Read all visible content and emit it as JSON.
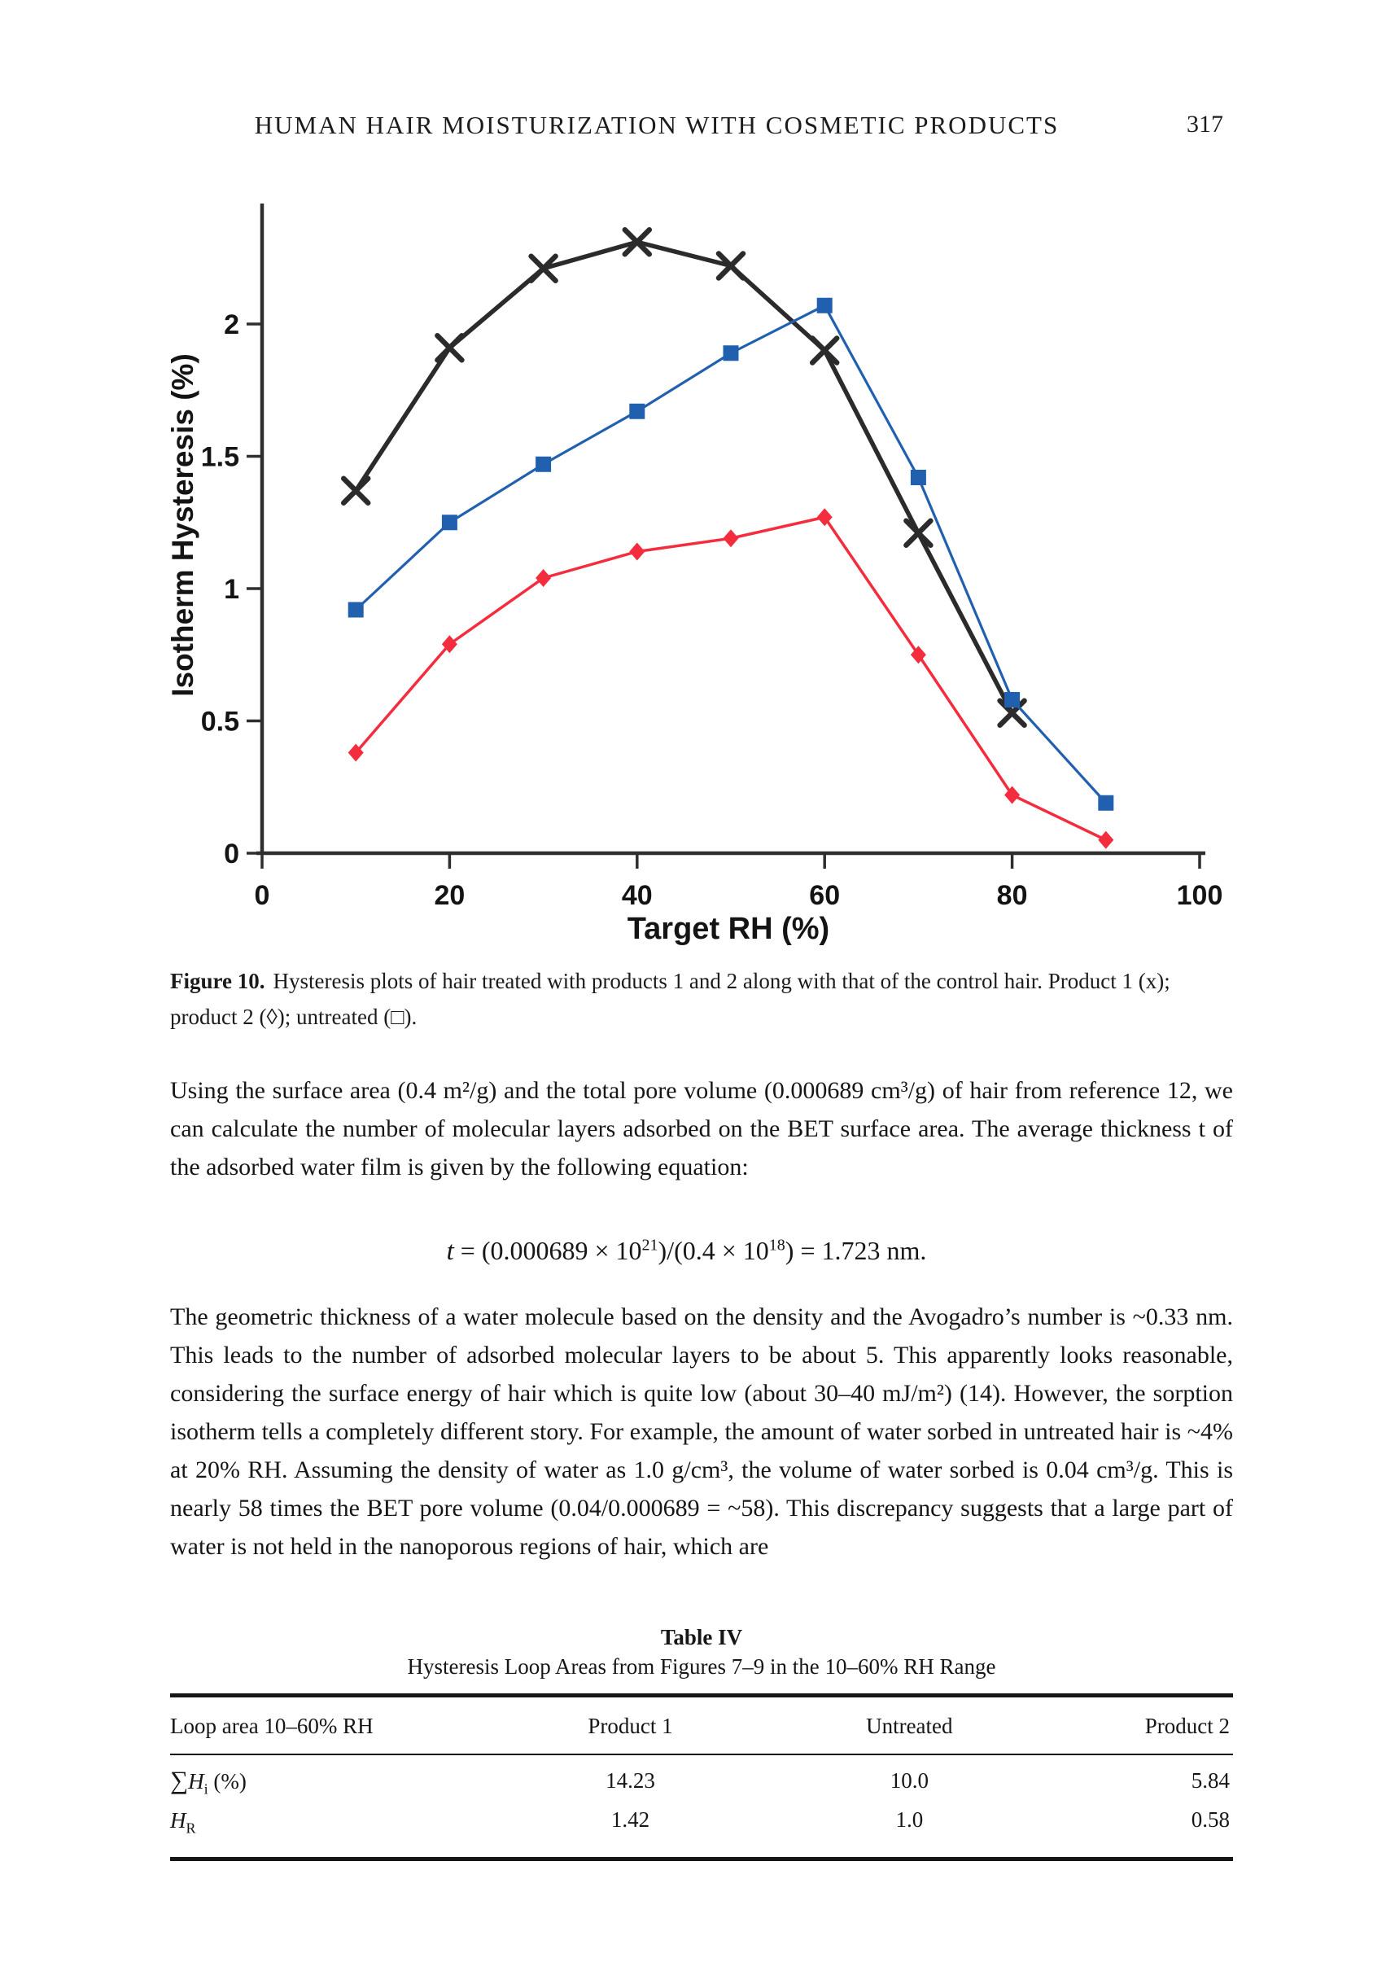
{
  "page_header": {
    "title": "HUMAN HAIR MOISTURIZATION WITH COSMETIC PRODUCTS",
    "page_number": "317"
  },
  "chart_data": {
    "type": "line",
    "title": "",
    "xlabel": "Target RH (%)",
    "ylabel": "Isotherm Hysteresis (%)",
    "x_ticks": [
      0,
      20,
      40,
      60,
      80,
      100
    ],
    "y_ticks": [
      0,
      0.5,
      1,
      1.5,
      2
    ],
    "xlim": [
      0,
      100
    ],
    "ylim": [
      0,
      2.45
    ],
    "grid": false,
    "legend_position": "none",
    "axis_color": "#2e2e2e",
    "series": [
      {
        "name": "Product 1",
        "marker": "x",
        "color": "#2b2b2b",
        "x": [
          10,
          20,
          30,
          40,
          50,
          60,
          70,
          80
        ],
        "y": [
          1.37,
          1.91,
          2.21,
          2.31,
          2.22,
          1.9,
          1.21,
          0.53
        ]
      },
      {
        "name": "Untreated",
        "marker": "square",
        "color": "#2160ae",
        "x": [
          10,
          20,
          30,
          40,
          50,
          60,
          70,
          80,
          90
        ],
        "y": [
          0.92,
          1.25,
          1.47,
          1.67,
          1.89,
          2.07,
          1.42,
          0.58,
          0.19
        ]
      },
      {
        "name": "Product 2",
        "marker": "diamond",
        "color": "#f32c3e",
        "x": [
          10,
          20,
          30,
          40,
          50,
          60,
          70,
          80,
          90
        ],
        "y": [
          0.38,
          0.79,
          1.04,
          1.14,
          1.19,
          1.27,
          0.75,
          0.22,
          0.05
        ]
      }
    ]
  },
  "figure_caption": {
    "label": "Figure 10.",
    "text": "Hysteresis plots of hair treated with products 1 and 2 along with that of the control hair. Product 1 (x); product 2 (◊); untreated (□)."
  },
  "body": {
    "p1": "Using the surface area (0.4 m²/g) and the total pore volume (0.000689 cm³/g) of hair from reference 12, we can calculate the number of molecular layers adsorbed on the BET surface area. The average thickness t of the adsorbed water film is given by the following equation:",
    "equation": {
      "var": "t",
      "mid1": " = (0.000689 × 10",
      "sup1": "21",
      "mid2": ")/(0.4 × 10",
      "sup2": "18",
      "end": ") = 1.723 nm."
    },
    "p2": "The geometric thickness of a water molecule based on the density and the Avogadro’s number is ~0.33 nm. This leads to the number of adsorbed molecular layers to be about 5. This apparently looks reasonable, considering the surface energy of hair which is quite low (about 30–40 mJ/m²) (14). However, the sorption isotherm tells a completely different story. For example, the amount of water sorbed in untreated hair is ~4% at 20% RH. Assuming the density of water as 1.0 g/cm³, the volume of water sorbed is 0.04 cm³/g. This is nearly 58 times the BET pore volume (0.04/0.000689 = ~58). This discrepancy suggests that a large part of water is not held in the nanoporous regions of hair, which are"
  },
  "table": {
    "title": "Table IV",
    "subtitle": "Hysteresis Loop Areas from Figures 7–9 in the 10–60% RH Range",
    "columns": [
      "Loop area 10–60% RH",
      "Product 1",
      "Untreated",
      "Product 2"
    ],
    "rows": [
      {
        "sym": "∑",
        "var": "H",
        "sub": "i",
        "suffix": " (%)",
        "values": [
          "14.23",
          "10.0",
          "5.84"
        ]
      },
      {
        "sym": "",
        "var": "H",
        "sub": "R",
        "suffix": "",
        "values": [
          "1.42",
          "1.0",
          "0.58"
        ]
      }
    ]
  }
}
